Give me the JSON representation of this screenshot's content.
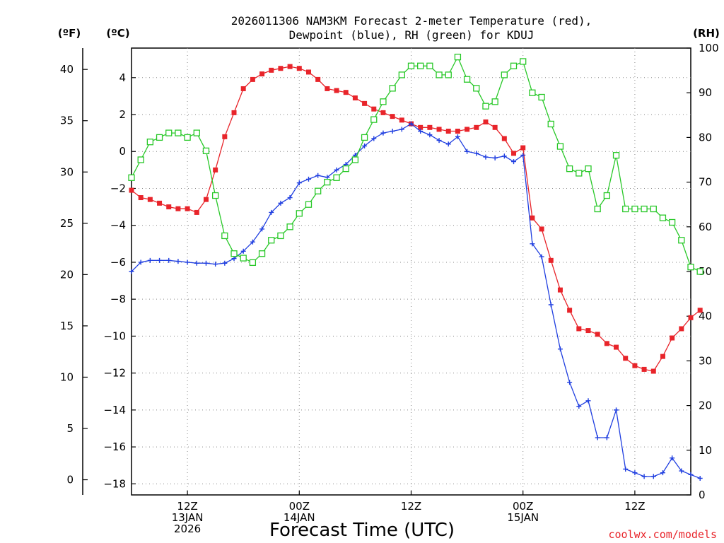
{
  "chart_data": {
    "type": "line",
    "title_line1": "2026011306 NAM3KM Forecast 2-meter Temperature (red),",
    "title_line2": "Dewpoint (blue), RH (green) for KDUJ",
    "xlabel": "Forecast Time (UTC)",
    "credit": "coolwx.com/models",
    "unit_labels": {
      "fahrenheit": "(ºF)",
      "celsius": "(ºC)",
      "rh": "(RH)"
    },
    "x_range_hours": [
      0,
      60
    ],
    "x_ticks": [
      {
        "hour": 6,
        "lines": [
          "12Z",
          "13JAN",
          "2026"
        ]
      },
      {
        "hour": 18,
        "lines": [
          "00Z",
          "14JAN"
        ]
      },
      {
        "hour": 30,
        "lines": [
          "12Z"
        ]
      },
      {
        "hour": 42,
        "lines": [
          "00Z",
          "15JAN"
        ]
      },
      {
        "hour": 54,
        "lines": [
          "12Z"
        ]
      }
    ],
    "y_celsius_range": [
      -18.6,
      5.6
    ],
    "y_celsius_ticks": [
      4,
      2,
      0,
      -2,
      -4,
      -6,
      -8,
      -10,
      -12,
      -14,
      -16,
      -18
    ],
    "y_fahrenheit_ticks": [
      40,
      35,
      30,
      25,
      20,
      15,
      10,
      5,
      0
    ],
    "y_rh_range": [
      0,
      100
    ],
    "y_rh_ticks": [
      100,
      90,
      80,
      70,
      60,
      50,
      40,
      30,
      20,
      10,
      0
    ],
    "series": [
      {
        "name": "Temperature",
        "axis": "celsius",
        "color": "#e8242a",
        "marker": "filled-square",
        "values": [
          -2.1,
          -2.5,
          -2.6,
          -2.8,
          -3.0,
          -3.1,
          -3.1,
          -3.3,
          -2.6,
          -1.0,
          0.8,
          2.1,
          3.4,
          3.9,
          4.2,
          4.4,
          4.5,
          4.6,
          4.5,
          4.3,
          3.9,
          3.4,
          3.3,
          3.2,
          2.9,
          2.6,
          2.3,
          2.1,
          1.9,
          1.7,
          1.5,
          1.3,
          1.3,
          1.2,
          1.1,
          1.1,
          1.2,
          1.3,
          1.6,
          1.3,
          0.7,
          -0.1,
          0.2,
          -3.6,
          -4.2,
          -5.9,
          -7.5,
          -8.6,
          -9.6,
          -9.7,
          -9.9,
          -10.4,
          -10.6,
          -11.2,
          -11.6,
          -11.8,
          -11.9,
          -11.1,
          -10.1,
          -9.6,
          -9.0,
          -8.6
        ]
      },
      {
        "name": "Dewpoint",
        "axis": "celsius",
        "color": "#1f3ee0",
        "marker": "plus",
        "values": [
          -6.5,
          -6.0,
          -5.9,
          -5.9,
          -5.9,
          -5.95,
          -6.0,
          -6.05,
          -6.05,
          -6.1,
          -6.05,
          -5.8,
          -5.4,
          -4.9,
          -4.2,
          -3.3,
          -2.8,
          -2.5,
          -1.7,
          -1.5,
          -1.3,
          -1.4,
          -1.0,
          -0.7,
          -0.2,
          0.3,
          0.7,
          1.0,
          1.1,
          1.2,
          1.5,
          1.1,
          0.9,
          0.6,
          0.4,
          0.8,
          0.0,
          -0.1,
          -0.3,
          -0.35,
          -0.25,
          -0.55,
          -0.2,
          -5.0,
          -5.7,
          -8.3,
          -10.7,
          -12.5,
          -13.8,
          -13.5,
          -15.5,
          -15.5,
          -14.0,
          -17.2,
          -17.4,
          -17.6,
          -17.6,
          -17.4,
          -16.6,
          -17.3,
          -17.5,
          -17.7
        ]
      },
      {
        "name": "RH",
        "axis": "rh",
        "color": "#28c828",
        "marker": "open-square",
        "values": [
          71,
          75,
          79,
          80,
          81,
          81,
          80,
          81,
          77,
          67,
          58,
          54,
          53,
          52,
          54,
          57,
          58,
          60,
          63,
          65,
          68,
          70,
          71,
          73,
          75,
          80,
          84,
          88,
          91,
          94,
          96,
          96,
          96,
          94,
          94,
          98,
          93,
          91,
          87,
          88,
          94,
          96,
          97,
          90,
          89,
          83,
          78,
          73,
          72,
          73,
          64,
          67,
          76,
          64,
          64,
          64,
          64,
          62,
          61,
          57,
          51,
          50
        ]
      }
    ]
  }
}
